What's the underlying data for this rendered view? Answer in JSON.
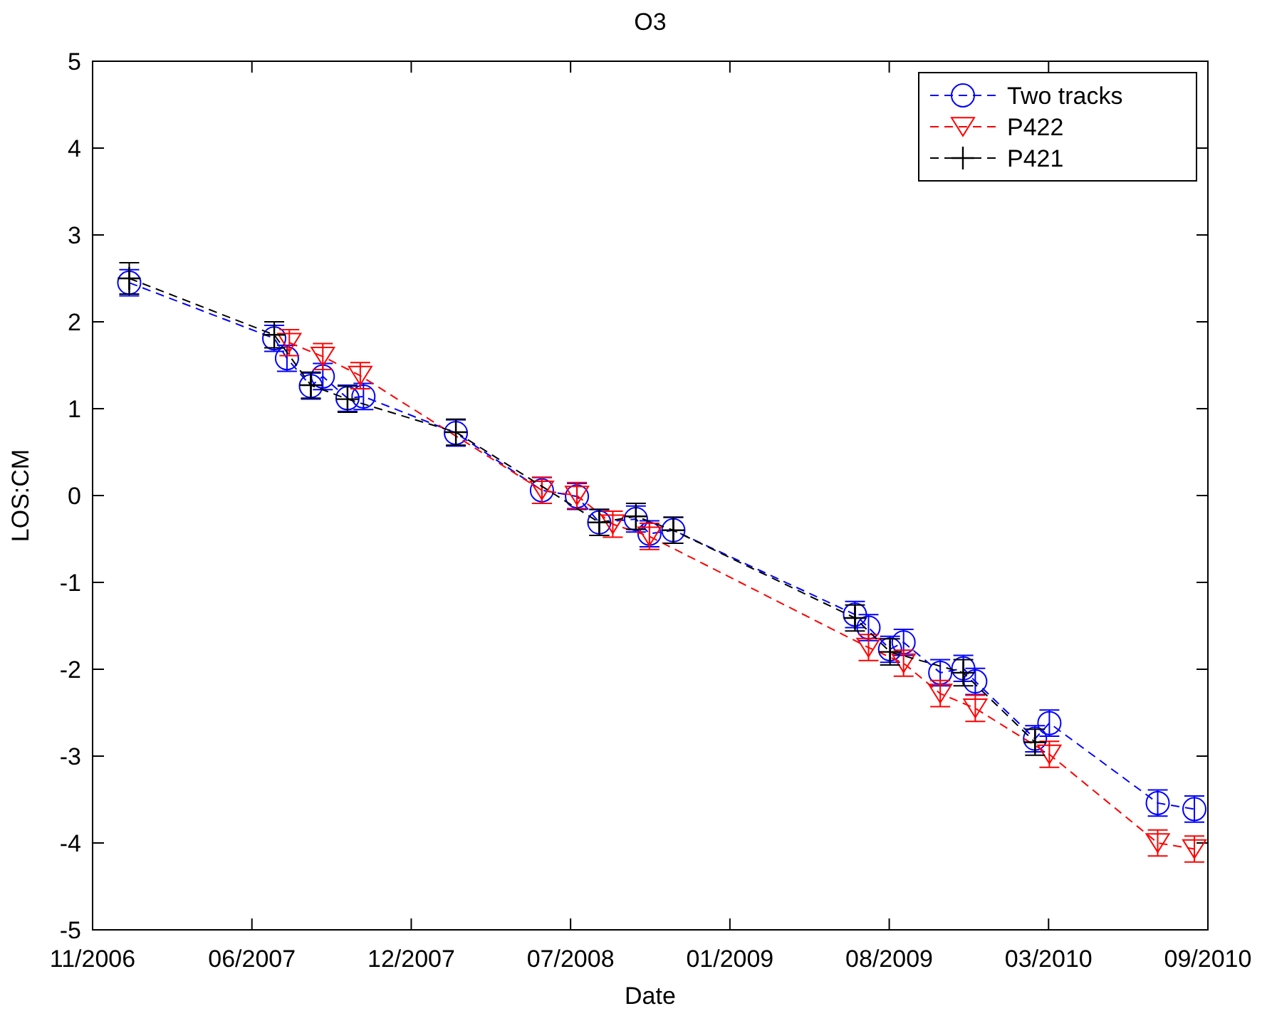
{
  "chart_data": {
    "type": "line",
    "title": "O3",
    "xlabel": "Date",
    "ylabel": "LOS:CM",
    "xlim": [
      "2006-11-20",
      "2010-09-20"
    ],
    "xticks": [
      {
        "value": "2006-11-20",
        "label": "11/2006"
      },
      {
        "value": "2007-06-08",
        "label": "06/2007"
      },
      {
        "value": "2007-12-25",
        "label": "12/2007"
      },
      {
        "value": "2008-07-12",
        "label": "07/2008"
      },
      {
        "value": "2009-01-28",
        "label": "01/2009"
      },
      {
        "value": "2009-08-16",
        "label": "08/2009"
      },
      {
        "value": "2010-03-04",
        "label": "03/2010"
      },
      {
        "value": "2010-09-20",
        "label": "09/2010"
      }
    ],
    "ylim": [
      -5,
      5
    ],
    "yticks": [
      -5,
      -4,
      -3,
      -2,
      -1,
      0,
      1,
      2,
      3,
      4,
      5
    ],
    "grid": false,
    "legend": "top right",
    "line_style": "dashed",
    "series": [
      {
        "name": "Two tracks",
        "color": "#0000ff",
        "marker": "circle",
        "x": [
          "2007-01-05",
          "2007-07-06",
          "2007-07-22",
          "2007-08-21",
          "2007-09-05",
          "2007-10-06",
          "2007-10-26",
          "2008-02-19",
          "2008-06-06",
          "2008-07-20",
          "2008-08-17",
          "2008-10-02",
          "2008-10-19",
          "2008-11-18",
          "2009-07-04",
          "2009-07-21",
          "2009-08-17",
          "2009-09-03",
          "2009-10-19",
          "2009-11-17",
          "2009-12-02",
          "2010-02-15",
          "2010-03-05",
          "2010-07-19",
          "2010-09-03"
        ],
        "values": [
          2.45,
          1.81,
          1.58,
          1.26,
          1.37,
          1.12,
          1.14,
          0.72,
          0.06,
          -0.01,
          -0.31,
          -0.27,
          -0.44,
          -0.4,
          -1.37,
          -1.52,
          -1.77,
          -1.69,
          -2.04,
          -1.99,
          -2.14,
          -2.8,
          -2.62,
          -3.54,
          -3.61
        ],
        "errors": [
          0.15,
          0.15,
          0.15,
          0.15,
          0.15,
          0.15,
          0.15,
          0.15,
          0.15,
          0.15,
          0.15,
          0.15,
          0.15,
          0.15,
          0.15,
          0.15,
          0.15,
          0.15,
          0.15,
          0.15,
          0.15,
          0.15,
          0.15,
          0.15,
          0.15
        ]
      },
      {
        "name": "P422",
        "color": "#ff0000",
        "marker": "triangle",
        "x": [
          "2007-07-25",
          "2007-09-05",
          "2007-10-22",
          "2008-06-06",
          "2008-07-20",
          "2008-09-03",
          "2008-10-19",
          "2009-07-21",
          "2009-09-03",
          "2009-10-19",
          "2009-12-02",
          "2010-03-05",
          "2010-07-19",
          "2010-09-03"
        ],
        "values": [
          1.76,
          1.6,
          1.38,
          0.06,
          0.0,
          -0.33,
          -0.47,
          -1.75,
          -1.93,
          -2.28,
          -2.45,
          -2.98,
          -4.0,
          -4.07
        ],
        "errors": [
          0.15,
          0.15,
          0.15,
          0.15,
          0.15,
          0.15,
          0.15,
          0.15,
          0.15,
          0.15,
          0.15,
          0.15,
          0.15,
          0.15
        ]
      },
      {
        "name": "P421",
        "color": "#000000",
        "marker": "cross",
        "x": [
          "2007-01-05",
          "2007-07-06",
          "2007-08-21",
          "2007-10-06",
          "2008-02-19",
          "2008-08-17",
          "2008-10-02",
          "2008-11-18",
          "2009-07-04",
          "2009-08-17",
          "2009-11-17",
          "2010-02-15"
        ],
        "values": [
          2.5,
          1.85,
          1.27,
          1.11,
          0.73,
          -0.31,
          -0.24,
          -0.4,
          -1.41,
          -1.8,
          -2.04,
          -2.84
        ],
        "errors": [
          0.18,
          0.15,
          0.15,
          0.15,
          0.15,
          0.15,
          0.15,
          0.15,
          0.15,
          0.15,
          0.15,
          0.15
        ]
      }
    ]
  }
}
